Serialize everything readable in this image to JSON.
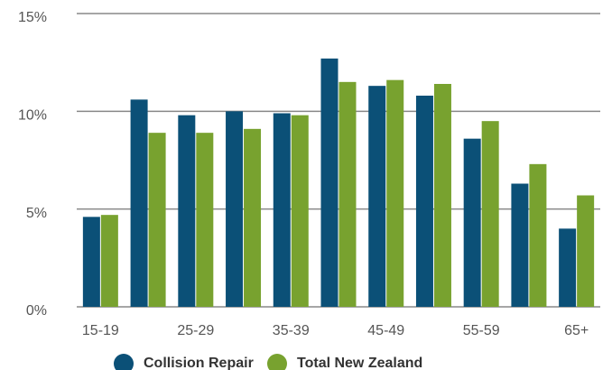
{
  "chart_data": {
    "type": "bar",
    "categories": [
      "15-19",
      null,
      "25-29",
      null,
      "35-39",
      null,
      "45-49",
      null,
      "55-59",
      null,
      "65+"
    ],
    "series": [
      {
        "name": "Collision Repair",
        "color": "#0b5077",
        "values": [
          4.6,
          10.6,
          9.8,
          10.0,
          9.9,
          12.7,
          11.3,
          10.8,
          8.6,
          6.3,
          4.0
        ]
      },
      {
        "name": "Total New Zealand",
        "color": "#78a22f",
        "values": [
          4.7,
          8.9,
          8.9,
          9.1,
          9.8,
          11.5,
          11.6,
          11.4,
          9.5,
          7.3,
          5.7
        ]
      }
    ],
    "ylim": [
      0,
      15
    ],
    "yticks": [
      {
        "value": 0,
        "label": "0%"
      },
      {
        "value": 5,
        "label": "5%"
      },
      {
        "value": 10,
        "label": "10%"
      },
      {
        "value": 15,
        "label": "15%"
      }
    ],
    "grid": true,
    "legend": "bottom"
  }
}
